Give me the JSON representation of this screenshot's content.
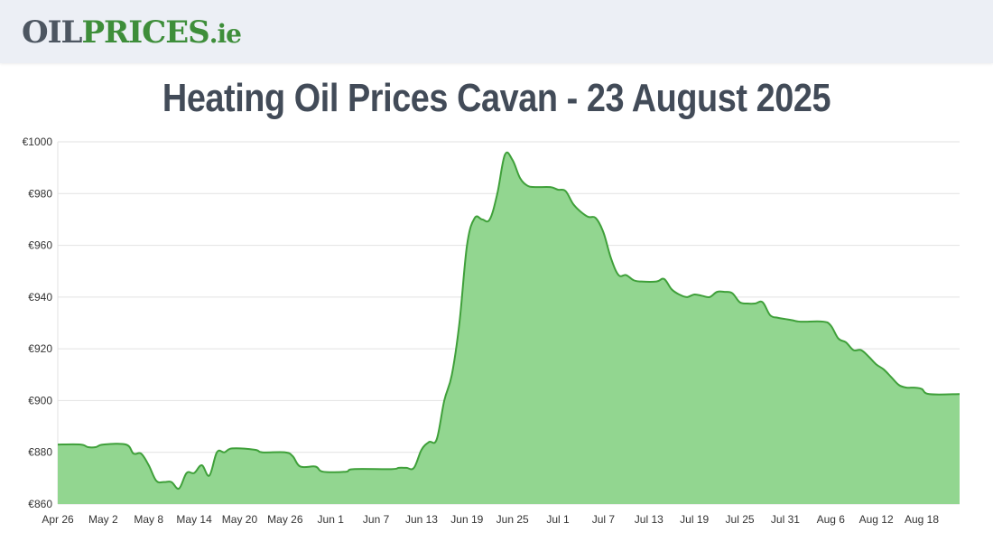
{
  "header": {
    "logo_part1": "OIL",
    "logo_part2": "PRICES",
    "logo_part3": ".ie"
  },
  "colors": {
    "line": "#3fa03a",
    "fill": "#92d690",
    "grid": "#e2e2e2"
  },
  "chart_data": {
    "type": "area",
    "title": "Heating Oil Prices Cavan - 23 August 2025",
    "xlabel": "",
    "ylabel": "",
    "ylim": [
      860,
      1000
    ],
    "y_ticks": [
      {
        "value": 1000,
        "label": "€1000"
      },
      {
        "value": 980,
        "label": "€980"
      },
      {
        "value": 960,
        "label": "€960"
      },
      {
        "value": 940,
        "label": "€940"
      },
      {
        "value": 920,
        "label": "€920"
      },
      {
        "value": 900,
        "label": "€900"
      },
      {
        "value": 880,
        "label": "€880"
      },
      {
        "value": 860,
        "label": "€860"
      }
    ],
    "x_range": [
      0,
      119
    ],
    "x_ticks": [
      {
        "day": 0,
        "label": "Apr 26"
      },
      {
        "day": 6,
        "label": "May 2"
      },
      {
        "day": 12,
        "label": "May 8"
      },
      {
        "day": 18,
        "label": "May 14"
      },
      {
        "day": 24,
        "label": "May 20"
      },
      {
        "day": 30,
        "label": "May 26"
      },
      {
        "day": 36,
        "label": "Jun 1"
      },
      {
        "day": 42,
        "label": "Jun 7"
      },
      {
        "day": 48,
        "label": "Jun 13"
      },
      {
        "day": 54,
        "label": "Jun 19"
      },
      {
        "day": 60,
        "label": "Jun 25"
      },
      {
        "day": 66,
        "label": "Jul 1"
      },
      {
        "day": 72,
        "label": "Jul 7"
      },
      {
        "day": 78,
        "label": "Jul 13"
      },
      {
        "day": 84,
        "label": "Jul 19"
      },
      {
        "day": 90,
        "label": "Jul 25"
      },
      {
        "day": 96,
        "label": "Jul 31"
      },
      {
        "day": 102,
        "label": "Aug 6"
      },
      {
        "day": 108,
        "label": "Aug 12"
      },
      {
        "day": 114,
        "label": "Aug 18"
      }
    ],
    "series": [
      {
        "name": "Heating Oil Price",
        "points": [
          [
            0,
            883
          ],
          [
            3,
            883
          ],
          [
            4,
            882
          ],
          [
            5,
            882
          ],
          [
            6,
            883
          ],
          [
            9,
            883
          ],
          [
            10,
            879.5
          ],
          [
            11,
            879.5
          ],
          [
            12,
            875
          ],
          [
            13,
            869
          ],
          [
            14,
            868.5
          ],
          [
            15,
            868.5
          ],
          [
            16,
            866
          ],
          [
            17,
            872
          ],
          [
            18,
            872
          ],
          [
            19,
            875
          ],
          [
            20,
            871
          ],
          [
            21,
            880
          ],
          [
            22,
            880
          ],
          [
            23,
            881.5
          ],
          [
            26,
            881
          ],
          [
            27,
            880
          ],
          [
            30,
            880
          ],
          [
            31,
            878.5
          ],
          [
            32,
            874.5
          ],
          [
            34,
            874.5
          ],
          [
            35,
            872.5
          ],
          [
            38,
            872.5
          ],
          [
            39,
            873.5
          ],
          [
            44,
            873.5
          ],
          [
            45,
            874
          ],
          [
            46,
            874
          ],
          [
            47,
            874
          ],
          [
            48,
            881
          ],
          [
            49,
            884
          ],
          [
            50,
            885
          ],
          [
            51,
            900
          ],
          [
            52,
            910
          ],
          [
            53,
            930
          ],
          [
            54,
            960
          ],
          [
            55,
            970.5
          ],
          [
            56,
            970
          ],
          [
            57,
            970
          ],
          [
            58,
            980
          ],
          [
            59,
            995
          ],
          [
            60,
            993
          ],
          [
            61,
            986
          ],
          [
            62,
            983
          ],
          [
            63,
            982.5
          ],
          [
            65,
            982.5
          ],
          [
            66,
            981.5
          ],
          [
            67,
            981
          ],
          [
            68,
            976
          ],
          [
            69,
            973
          ],
          [
            70,
            971
          ],
          [
            71,
            970.5
          ],
          [
            72,
            965
          ],
          [
            73,
            955
          ],
          [
            74,
            948.5
          ],
          [
            75,
            948.5
          ],
          [
            76,
            946.5
          ],
          [
            77,
            946
          ],
          [
            79,
            946
          ],
          [
            80,
            947
          ],
          [
            81,
            943
          ],
          [
            82,
            941
          ],
          [
            83,
            940
          ],
          [
            84,
            941
          ],
          [
            85,
            940.5
          ],
          [
            86,
            940
          ],
          [
            87,
            942
          ],
          [
            88,
            942
          ],
          [
            89,
            941.5
          ],
          [
            90,
            938
          ],
          [
            91,
            937.5
          ],
          [
            92,
            937.5
          ],
          [
            93,
            938
          ],
          [
            94,
            933
          ],
          [
            95,
            932
          ],
          [
            96,
            931.5
          ],
          [
            97,
            931
          ],
          [
            98,
            930.5
          ],
          [
            101,
            930.5
          ],
          [
            102,
            929
          ],
          [
            103,
            924
          ],
          [
            104,
            922.5
          ],
          [
            105,
            919.5
          ],
          [
            106,
            919.5
          ],
          [
            107,
            917
          ],
          [
            108,
            914
          ],
          [
            109,
            912
          ],
          [
            110,
            909
          ],
          [
            111,
            906
          ],
          [
            112,
            905
          ],
          [
            113,
            905
          ],
          [
            114,
            904.5
          ],
          [
            115,
            902.5
          ],
          [
            119,
            902.5
          ]
        ]
      }
    ]
  }
}
